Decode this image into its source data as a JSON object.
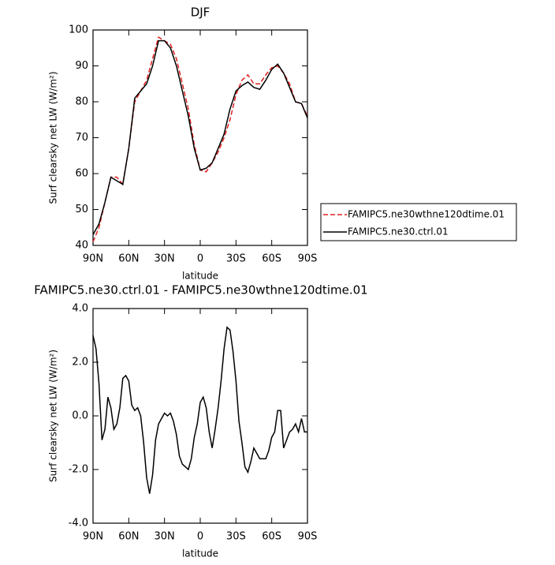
{
  "chart_data": [
    {
      "type": "line",
      "title": "DJF",
      "xlabel": "latitude",
      "ylabel": "Surf clearsky net LW (W/m²)",
      "x": [
        90,
        85,
        80,
        75,
        70,
        65,
        60,
        55,
        50,
        45,
        40,
        35,
        30,
        25,
        20,
        15,
        10,
        5,
        0,
        -5,
        -10,
        -15,
        -20,
        -25,
        -30,
        -35,
        -40,
        -45,
        -50,
        -55,
        -60,
        -65,
        -70,
        -75,
        -80,
        -85,
        -90
      ],
      "series": [
        {
          "name": "FAMIPC5.ne30wthne120dtime.01",
          "color": "#e02020",
          "line_style": "dashed",
          "values": [
            41,
            45,
            52,
            59,
            59,
            57,
            67,
            80,
            83,
            86,
            92,
            98,
            97,
            96,
            92,
            85,
            78,
            68,
            61,
            60.5,
            63,
            66,
            70,
            75,
            82,
            86,
            87.5,
            85,
            85,
            87.5,
            89.5,
            90,
            88,
            85,
            80,
            79.5,
            76
          ]
        },
        {
          "name": "FAMIPC5.ne30.ctrl.01",
          "color": "#000000",
          "line_style": "solid",
          "values": [
            43,
            46,
            52,
            59,
            58,
            57,
            67,
            81,
            83,
            85,
            90,
            97,
            97,
            95,
            90,
            83,
            76,
            67,
            61,
            61.5,
            63,
            67,
            71,
            78,
            83,
            84.5,
            85.5,
            84,
            83.5,
            86,
            89,
            90.5,
            88,
            84,
            80,
            79.5,
            75.5
          ]
        }
      ],
      "xlim": [
        90,
        -90
      ],
      "xticks": [
        {
          "value": 90,
          "label": "90N"
        },
        {
          "value": 60,
          "label": "60N"
        },
        {
          "value": 30,
          "label": "30N"
        },
        0,
        {
          "value": -30,
          "label": "30S"
        },
        {
          "value": -60,
          "label": "60S"
        },
        {
          "value": -90,
          "label": "90S"
        }
      ],
      "ylim": [
        40,
        100
      ],
      "yticks": [
        40,
        50,
        60,
        70,
        80,
        90,
        100
      ]
    },
    {
      "type": "line",
      "title": "FAMIPC5.ne30.ctrl.01 - FAMIPC5.ne30wthne120dtime.01",
      "xlabel": "latitude",
      "ylabel": "Surf clearsky net LW (W/m²)",
      "x": [
        90,
        87.5,
        85,
        82.5,
        80,
        77.5,
        75,
        72.5,
        70,
        67.5,
        65,
        62.5,
        60,
        57.5,
        55,
        52.5,
        50,
        47.5,
        45,
        42.5,
        40,
        37.5,
        35,
        32.5,
        30,
        27.5,
        25,
        22.5,
        20,
        17.5,
        15,
        12.5,
        10,
        7.5,
        5,
        2.5,
        0,
        -2.5,
        -5,
        -7.5,
        -10,
        -12.5,
        -15,
        -17.5,
        -20,
        -22.5,
        -25,
        -27.5,
        -30,
        -32.5,
        -35,
        -37.5,
        -40,
        -42.5,
        -45,
        -47.5,
        -50,
        -52.5,
        -55,
        -57.5,
        -60,
        -62.5,
        -65,
        -67.5,
        -70,
        -72.5,
        -75,
        -77.5,
        -80,
        -82.5,
        -85,
        -87.5,
        -90
      ],
      "series": [
        {
          "color": "#000000",
          "line_style": "solid",
          "values": [
            3.0,
            2.5,
            1.2,
            -0.9,
            -0.5,
            0.7,
            0.3,
            -0.5,
            -0.3,
            0.3,
            1.4,
            1.5,
            1.3,
            0.4,
            0.2,
            0.3,
            0.0,
            -1.0,
            -2.3,
            -2.9,
            -2.2,
            -0.9,
            -0.3,
            -0.1,
            0.1,
            0.0,
            0.1,
            -0.2,
            -0.7,
            -1.5,
            -1.8,
            -1.9,
            -2.0,
            -1.6,
            -0.8,
            -0.3,
            0.5,
            0.7,
            0.3,
            -0.6,
            -1.2,
            -0.5,
            0.3,
            1.3,
            2.5,
            3.3,
            3.2,
            2.4,
            1.3,
            -0.2,
            -1.0,
            -1.9,
            -2.1,
            -1.7,
            -1.2,
            -1.4,
            -1.6,
            -1.6,
            -1.6,
            -1.3,
            -0.8,
            -0.6,
            0.2,
            0.2,
            -1.2,
            -0.9,
            -0.6,
            -0.5,
            -0.3,
            -0.6,
            -0.1,
            -0.6,
            -0.6
          ]
        }
      ],
      "xlim": [
        90,
        -90
      ],
      "xticks": [
        {
          "value": 90,
          "label": "90N"
        },
        {
          "value": 60,
          "label": "60N"
        },
        {
          "value": 30,
          "label": "30N"
        },
        0,
        {
          "value": -30,
          "label": "30S"
        },
        {
          "value": -60,
          "label": "60S"
        },
        {
          "value": -90,
          "label": "90S"
        }
      ],
      "ylim": [
        -4,
        4
      ],
      "yticks": [
        {
          "value": -4,
          "label": "-4.0"
        },
        {
          "value": -2,
          "label": "-2.0"
        },
        {
          "value": 0,
          "label": "0.0"
        },
        {
          "value": 2,
          "label": "2.0"
        },
        {
          "value": 4,
          "label": "4.0"
        }
      ]
    }
  ]
}
